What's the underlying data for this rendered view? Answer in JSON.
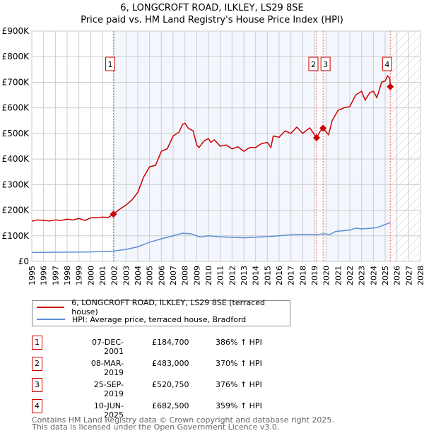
{
  "title_line1": "6, LONGCROFT ROAD, ILKLEY, LS29 8SE",
  "title_line2": "Price paid vs. HM Land Registry's House Price Index (HPI)",
  "chart_data": {
    "type": "line",
    "xlim": [
      1995,
      2028
    ],
    "ylim": [
      0,
      900000
    ],
    "yticks": [
      0,
      100000,
      200000,
      300000,
      400000,
      500000,
      600000,
      700000,
      800000,
      900000
    ],
    "ytick_labels": [
      "£0",
      "£100K",
      "£200K",
      "£300K",
      "£400K",
      "£500K",
      "£600K",
      "£700K",
      "£800K",
      "£900K"
    ],
    "xticks": [
      1995,
      1996,
      1997,
      1998,
      1999,
      2000,
      2001,
      2002,
      2003,
      2004,
      2005,
      2006,
      2007,
      2008,
      2009,
      2010,
      2011,
      2012,
      2013,
      2014,
      2015,
      2016,
      2017,
      2018,
      2019,
      2020,
      2021,
      2022,
      2023,
      2024,
      2025,
      2026,
      2027,
      2028
    ],
    "grid": true,
    "series": [
      {
        "name": "6, LONGCROFT ROAD, ILKLEY, LS29 8SE (terraced house)",
        "color": "#cc0000",
        "points": [
          [
            1995,
            157
          ],
          [
            1995.5,
            162
          ],
          [
            1996,
            160
          ],
          [
            1996.5,
            158
          ],
          [
            1997,
            162
          ],
          [
            1997.5,
            160
          ],
          [
            1998,
            165
          ],
          [
            1998.5,
            162
          ],
          [
            1999,
            168
          ],
          [
            1999.5,
            160
          ],
          [
            2000,
            170
          ],
          [
            2000.5,
            171
          ],
          [
            2001,
            173
          ],
          [
            2001.5,
            172
          ],
          [
            2001.93,
            185
          ],
          [
            2002.5,
            205
          ],
          [
            2003,
            220
          ],
          [
            2003.5,
            240
          ],
          [
            2004,
            270
          ],
          [
            2004.5,
            330
          ],
          [
            2005,
            370
          ],
          [
            2005.5,
            375
          ],
          [
            2006,
            430
          ],
          [
            2006.5,
            440
          ],
          [
            2007,
            490
          ],
          [
            2007.5,
            505
          ],
          [
            2007.8,
            535
          ],
          [
            2008,
            540
          ],
          [
            2008.3,
            520
          ],
          [
            2008.7,
            510
          ],
          [
            2009,
            455
          ],
          [
            2009.2,
            445
          ],
          [
            2009.6,
            470
          ],
          [
            2010,
            480
          ],
          [
            2010.2,
            465
          ],
          [
            2010.5,
            475
          ],
          [
            2011,
            450
          ],
          [
            2011.5,
            455
          ],
          [
            2012,
            440
          ],
          [
            2012.5,
            448
          ],
          [
            2013,
            430
          ],
          [
            2013.5,
            445
          ],
          [
            2014,
            445
          ],
          [
            2014.5,
            460
          ],
          [
            2015,
            465
          ],
          [
            2015.3,
            445
          ],
          [
            2015.5,
            490
          ],
          [
            2016,
            485
          ],
          [
            2016.5,
            510
          ],
          [
            2017,
            500
          ],
          [
            2017.5,
            525
          ],
          [
            2018,
            500
          ],
          [
            2018.6,
            522
          ],
          [
            2019.18,
            483
          ],
          [
            2019.5,
            510
          ],
          [
            2019.73,
            521
          ],
          [
            2020.2,
            495
          ],
          [
            2020.5,
            550
          ],
          [
            2021,
            590
          ],
          [
            2021.5,
            600
          ],
          [
            2022,
            605
          ],
          [
            2022.5,
            650
          ],
          [
            2023,
            665
          ],
          [
            2023.3,
            630
          ],
          [
            2023.7,
            660
          ],
          [
            2024,
            665
          ],
          [
            2024.3,
            640
          ],
          [
            2024.7,
            700
          ],
          [
            2025,
            705
          ],
          [
            2025.2,
            725
          ],
          [
            2025.4,
            715
          ],
          [
            2025.44,
            682.5
          ]
        ]
      },
      {
        "name": "HPI: Average price, terraced house, Bradford",
        "color": "#5b8fd6",
        "points": [
          [
            1995,
            35
          ],
          [
            2000,
            37
          ],
          [
            2001.9,
            40
          ],
          [
            2003,
            47
          ],
          [
            2004,
            57
          ],
          [
            2005,
            75
          ],
          [
            2006,
            88
          ],
          [
            2007,
            100
          ],
          [
            2007.8,
            110
          ],
          [
            2008.5,
            108
          ],
          [
            2009.3,
            95
          ],
          [
            2010,
            100
          ],
          [
            2011,
            96
          ],
          [
            2013,
            92
          ],
          [
            2015,
            97
          ],
          [
            2016,
            100
          ],
          [
            2017,
            104
          ],
          [
            2018,
            106
          ],
          [
            2019,
            104
          ],
          [
            2019.8,
            108
          ],
          [
            2020.3,
            105
          ],
          [
            2020.8,
            117
          ],
          [
            2021.5,
            120
          ],
          [
            2022,
            122
          ],
          [
            2022.5,
            130
          ],
          [
            2023,
            127
          ],
          [
            2024,
            130
          ],
          [
            2024.5,
            135
          ],
          [
            2025.44,
            152
          ]
        ]
      }
    ],
    "sales": [
      {
        "label": "1",
        "x": 2001.93,
        "y": 184.7
      },
      {
        "label": "2",
        "x": 2019.18,
        "y": 483
      },
      {
        "label": "3",
        "x": 2019.73,
        "y": 520.75
      },
      {
        "label": "4",
        "x": 2025.44,
        "y": 682.5
      }
    ],
    "y_unit": "K GBP"
  },
  "legend": {
    "property": "6, LONGCROFT ROAD, ILKLEY, LS29 8SE (terraced house)",
    "hpi": "HPI: Average price, terraced house, Bradford"
  },
  "transactions": [
    {
      "num": "1",
      "date": "07-DEC-2001",
      "price": "£184,700",
      "hpi": "386% ↑ HPI"
    },
    {
      "num": "2",
      "date": "08-MAR-2019",
      "price": "£483,000",
      "hpi": "370% ↑ HPI"
    },
    {
      "num": "3",
      "date": "25-SEP-2019",
      "price": "£520,750",
      "hpi": "376% ↑ HPI"
    },
    {
      "num": "4",
      "date": "10-JUN-2025",
      "price": "£682,500",
      "hpi": "359% ↑ HPI"
    }
  ],
  "footer_line1": "Contains HM Land Registry data © Crown copyright and database right 2025.",
  "footer_line2": "This data is licensed under the Open Government Licence v3.0."
}
